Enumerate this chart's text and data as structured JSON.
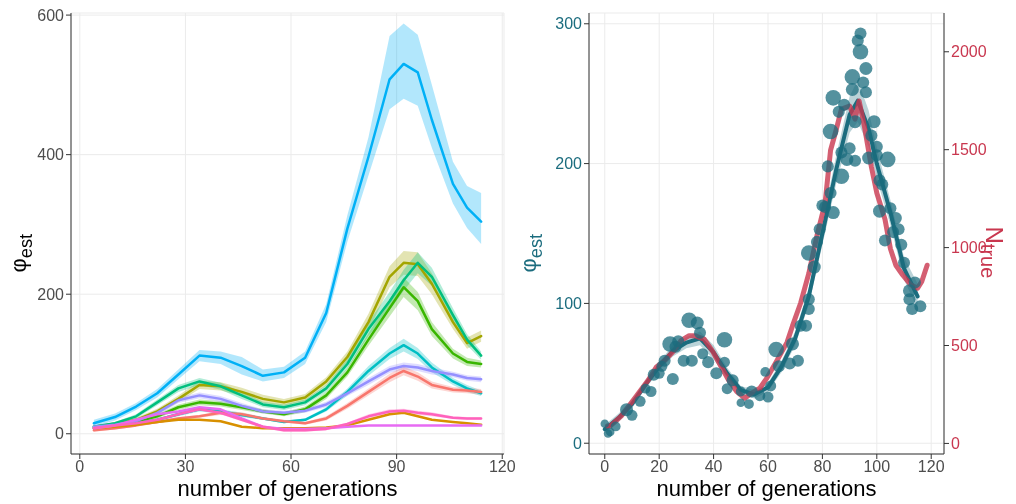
{
  "chart_data": [
    {
      "type": "line",
      "xlabel": "number of generations",
      "ylabel": "φ$_{est}$",
      "xlim": [
        -2.5,
        120.5
      ],
      "ylim": [
        -29,
        603
      ],
      "xticks": [
        0,
        30,
        60,
        90,
        120
      ],
      "yticks": [
        0,
        200,
        400,
        600
      ],
      "grid": true,
      "line_style": "solid",
      "x": [
        4,
        10,
        16,
        22,
        28,
        34,
        40,
        46,
        52,
        58,
        64,
        70,
        76,
        82,
        88,
        92,
        96,
        100,
        106,
        110,
        114
      ],
      "series": [
        {
          "color": "#00b0f6",
          "values": [
            15,
            24,
            39,
            58,
            85,
            112,
            109,
            97,
            83,
            88,
            109,
            173,
            294,
            397,
            508,
            530,
            518,
            450,
            358,
            324,
            304
          ],
          "lower": [
            10,
            19,
            34,
            52,
            78,
            104,
            100,
            85,
            75,
            80,
            100,
            160,
            275,
            370,
            465,
            480,
            470,
            410,
            330,
            295,
            272
          ],
          "upper": [
            20,
            29,
            44,
            64,
            92,
            120,
            118,
            110,
            92,
            96,
            118,
            186,
            313,
            425,
            570,
            588,
            572,
            500,
            390,
            355,
            345
          ]
        },
        {
          "color": "#a3a500",
          "values": [
            10,
            14,
            20,
            32,
            50,
            70,
            68,
            60,
            50,
            45,
            52,
            75,
            110,
            160,
            225,
            245,
            243,
            215,
            160,
            130,
            140
          ],
          "lower": [
            8,
            12,
            17,
            28,
            45,
            64,
            62,
            54,
            44,
            40,
            47,
            69,
            102,
            148,
            210,
            228,
            226,
            200,
            150,
            122,
            132
          ],
          "upper": [
            12,
            16,
            23,
            36,
            55,
            76,
            74,
            66,
            56,
            50,
            57,
            81,
            118,
            172,
            240,
            262,
            260,
            230,
            170,
            138,
            148
          ]
        },
        {
          "color": "#00bf7d",
          "values": [
            10,
            15,
            25,
            45,
            65,
            75,
            68,
            55,
            42,
            38,
            45,
            65,
            100,
            150,
            190,
            220,
            245,
            225,
            170,
            135,
            112
          ],
          "lower": [
            8,
            13,
            22,
            41,
            60,
            70,
            63,
            50,
            38,
            34,
            41,
            60,
            93,
            140,
            177,
            205,
            230,
            212,
            160,
            127,
            106
          ],
          "upper": [
            12,
            17,
            28,
            49,
            70,
            80,
            73,
            60,
            46,
            42,
            49,
            70,
            107,
            160,
            203,
            235,
            260,
            238,
            180,
            143,
            118
          ]
        },
        {
          "color": "#39b600",
          "values": [
            8,
            12,
            17,
            25,
            38,
            45,
            43,
            38,
            32,
            28,
            35,
            55,
            88,
            135,
            180,
            210,
            190,
            150,
            115,
            103,
            100
          ],
          "lower": [
            6,
            10,
            15,
            22,
            34,
            41,
            39,
            34,
            29,
            25,
            31,
            50,
            82,
            126,
            168,
            196,
            177,
            140,
            108,
            97,
            95
          ],
          "upper": [
            10,
            14,
            19,
            28,
            42,
            49,
            47,
            42,
            35,
            31,
            39,
            60,
            94,
            144,
            192,
            224,
            203,
            160,
            122,
            109,
            105
          ]
        },
        {
          "color": "#00bfc4",
          "values": [
            8,
            11,
            15,
            20,
            28,
            35,
            32,
            27,
            22,
            17,
            20,
            35,
            60,
            90,
            115,
            127,
            115,
            95,
            75,
            65,
            58
          ],
          "lower": [
            6,
            9,
            13,
            18,
            25,
            32,
            29,
            24,
            20,
            15,
            18,
            32,
            55,
            83,
            107,
            118,
            107,
            88,
            70,
            60,
            54
          ],
          "upper": [
            10,
            13,
            17,
            22,
            31,
            38,
            35,
            30,
            24,
            19,
            22,
            38,
            65,
            97,
            123,
            136,
            123,
            102,
            80,
            70,
            62
          ]
        },
        {
          "color": "#9590ff",
          "values": [
            10,
            13,
            18,
            30,
            48,
            55,
            50,
            40,
            32,
            30,
            33,
            42,
            58,
            75,
            92,
            97,
            95,
            90,
            85,
            80,
            78
          ],
          "lower": [
            7,
            10,
            15,
            26,
            44,
            51,
            46,
            36,
            29,
            27,
            30,
            38,
            54,
            70,
            87,
            92,
            90,
            85,
            81,
            76,
            74
          ],
          "upper": [
            13,
            16,
            21,
            34,
            52,
            59,
            54,
            44,
            35,
            33,
            36,
            46,
            62,
            80,
            97,
            102,
            100,
            95,
            89,
            84,
            82
          ]
        },
        {
          "color": "#f8766d",
          "values": [
            5,
            8,
            12,
            17,
            22,
            25,
            30,
            28,
            22,
            18,
            15,
            22,
            40,
            60,
            80,
            90,
            82,
            70,
            63,
            62,
            60
          ],
          "lower": [
            3,
            6,
            10,
            15,
            20,
            23,
            27,
            25,
            20,
            16,
            13,
            19,
            36,
            55,
            74,
            84,
            76,
            65,
            59,
            58,
            56
          ],
          "upper": [
            7,
            10,
            14,
            19,
            24,
            27,
            33,
            31,
            24,
            20,
            17,
            25,
            44,
            65,
            86,
            96,
            88,
            75,
            67,
            66,
            64
          ]
        },
        {
          "color": "#d89000",
          "values": [
            8,
            10,
            13,
            17,
            20,
            20,
            18,
            10,
            8,
            8,
            8,
            9,
            12,
            20,
            28,
            30,
            25,
            20,
            17,
            15,
            13
          ]
        },
        {
          "color": "#e76bf3",
          "values": [
            8,
            12,
            20,
            28,
            32,
            38,
            35,
            22,
            10,
            7,
            7,
            8,
            10,
            12,
            12,
            12,
            12,
            12,
            12,
            12,
            12
          ]
        },
        {
          "color": "#ff62bc",
          "values": [
            8,
            12,
            15,
            20,
            28,
            35,
            30,
            20,
            10,
            5,
            5,
            7,
            14,
            25,
            32,
            33,
            30,
            28,
            23,
            22,
            22
          ],
          "lower": [
            6,
            10,
            13,
            18,
            26,
            33,
            28,
            18,
            8,
            3,
            3,
            5,
            12,
            22,
            29,
            30,
            27,
            25,
            21,
            20,
            20
          ],
          "upper": [
            10,
            14,
            17,
            22,
            30,
            37,
            32,
            22,
            12,
            7,
            7,
            9,
            16,
            28,
            35,
            36,
            33,
            31,
            25,
            24,
            24
          ]
        }
      ]
    },
    {
      "type": "bubble",
      "xlabel": "number of generations",
      "ylabel": "φ$_{est}$",
      "y2label": "N$_{true}$",
      "xlim": [
        -5.8,
        124.7
      ],
      "ylim": [
        -7.7,
        307.7
      ],
      "y2lim": [
        -54,
        2198
      ],
      "xticks": [
        0,
        20,
        40,
        60,
        80,
        100,
        120
      ],
      "yticks": [
        0,
        100,
        200,
        300
      ],
      "y2ticks": [
        0,
        500,
        1000,
        1500,
        2000
      ],
      "grid": true,
      "line_style": "solid",
      "series": [
        {
          "color": "#1b6c7e",
          "x": [
            0,
            1.2,
            2,
            4,
            8,
            10,
            13,
            15,
            17,
            18,
            20,
            21,
            22,
            24,
            25,
            26,
            27,
            29,
            31,
            32,
            34,
            35,
            36,
            38,
            41,
            44,
            44,
            45,
            47,
            50,
            50,
            53,
            54,
            57,
            59,
            60,
            61,
            63,
            64,
            68,
            69,
            71,
            72,
            74,
            75,
            75,
            75,
            77,
            78,
            79,
            80,
            81,
            82,
            83,
            83,
            84,
            84,
            86,
            87,
            87,
            88,
            89,
            90,
            91,
            91,
            92,
            92,
            93,
            94,
            94,
            95,
            96,
            96,
            97,
            98,
            99,
            100,
            100,
            101,
            102,
            101,
            103,
            104,
            105,
            106,
            107,
            108,
            109,
            110,
            112,
            112,
            113,
            114,
            116
          ],
          "values": [
            14,
            7,
            8,
            12,
            24,
            20,
            30,
            39,
            37,
            49,
            50,
            55,
            59,
            71,
            46,
            69,
            73,
            59,
            88,
            59,
            86,
            79,
            64,
            58,
            50,
            74,
            58,
            39,
            45,
            29,
            37,
            28,
            37,
            34,
            51,
            33,
            41,
            67,
            55,
            57,
            71,
            59,
            84,
            84,
            96,
            103,
            136,
            126,
            144,
            153,
            170,
            169,
            198,
            179,
            223,
            247,
            165,
            237,
            191,
            208,
            242,
            203,
            211,
            253,
            262,
            202,
            230,
            288,
            293,
            280,
            258,
            251,
            268,
            204,
            220,
            230,
            206,
            212,
            188,
            185,
            166,
            145,
            203,
            168,
            151,
            161,
            153,
            142,
            129,
            109,
            103,
            96,
            115,
            98
          ],
          "sizes": [
            0.3,
            0.3,
            0.3,
            0.4,
            0.7,
            0.5,
            0.5,
            0.4,
            0.5,
            0.6,
            0.5,
            0.5,
            0.6,
            1,
            0.6,
            0.6,
            0.6,
            0.6,
            1,
            0.6,
            0.7,
            0.6,
            0.5,
            0.6,
            0.6,
            1,
            0.5,
            0.5,
            0.6,
            0.3,
            0.4,
            0.4,
            0.6,
            0.5,
            0.4,
            0.5,
            0.5,
            1,
            0.6,
            0.6,
            0.7,
            0.6,
            0.6,
            0.6,
            0.6,
            0.6,
            1,
            0.7,
            0.6,
            0.6,
            0.6,
            0.6,
            0.6,
            0.6,
            1,
            1,
            0.7,
            0.6,
            1,
            0.6,
            0.6,
            0.7,
            0.6,
            0.7,
            1,
            0.6,
            0.7,
            0.6,
            0.6,
            1,
            0.6,
            0.6,
            0.7,
            0.7,
            0.6,
            0.7,
            0.6,
            0.6,
            0.6,
            0.6,
            0.7,
            0.6,
            1,
            0.6,
            0.6,
            0.6,
            0.6,
            0.6,
            0.6,
            0.7,
            0.6,
            0.6,
            0.6,
            0.6
          ]
        },
        {
          "type": "line",
          "color": "#1b6c7e",
          "x": [
            0,
            5,
            10,
            15,
            20,
            25,
            30,
            35,
            40,
            45,
            50,
            55,
            60,
            65,
            70,
            75,
            80,
            85,
            90,
            93,
            97,
            100,
            105,
            110,
            115
          ],
          "values": [
            10,
            18,
            28,
            42,
            55,
            66,
            72,
            75,
            65,
            50,
            38,
            35,
            40,
            55,
            75,
            105,
            150,
            195,
            235,
            245,
            225,
            200,
            165,
            125,
            105
          ],
          "lower": [
            7,
            15,
            25,
            39,
            52,
            62,
            68,
            70,
            60,
            46,
            35,
            32,
            37,
            51,
            70,
            99,
            142,
            185,
            222,
            230,
            212,
            189,
            156,
            117,
            96
          ],
          "upper": [
            13,
            21,
            31,
            45,
            58,
            70,
            76,
            80,
            70,
            54,
            41,
            38,
            43,
            59,
            80,
            111,
            158,
            205,
            248,
            260,
            238,
            211,
            174,
            133,
            114
          ]
        },
        {
          "type": "line",
          "axis": "y2",
          "color": "#c9374f",
          "x": [
            1,
            2,
            6,
            11,
            16,
            19,
            22,
            25.5,
            28,
            31,
            33,
            36.5,
            39.5,
            42.5,
            45.5,
            48.5,
            51.5,
            54,
            57,
            59.5,
            63,
            67,
            69,
            72,
            75,
            78,
            81,
            83,
            85,
            87,
            90,
            92,
            93.5,
            95.5,
            98,
            100,
            103,
            105,
            107,
            109.5,
            112.5,
            115,
            116.5,
            118.5
          ],
          "values": [
            89,
            89,
            139,
            231,
            324,
            391,
            424,
            474,
            525,
            550,
            550,
            533,
            474,
            399,
            324,
            265,
            231,
            257,
            282,
            332,
            416,
            516,
            600,
            717,
            868,
            1061,
            1229,
            1497,
            1598,
            1707,
            1723,
            1656,
            1749,
            1614,
            1413,
            1279,
            1145,
            994,
            910,
            860,
            810,
            793,
            826,
            910
          ]
        }
      ]
    }
  ]
}
